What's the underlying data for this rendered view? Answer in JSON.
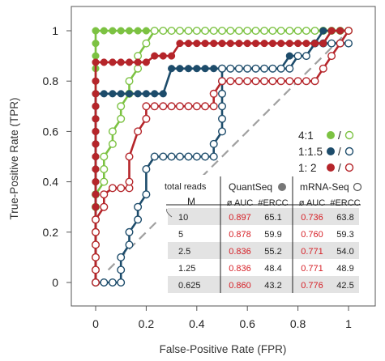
{
  "chart_data": {
    "type": "line",
    "xlabel": "False-Positive Rate (FPR)",
    "ylabel": "True-Positive Rate (TPR)",
    "xlim": [
      0,
      1
    ],
    "ylim": [
      0,
      1
    ],
    "x_ticks": [
      "0",
      "0.2",
      "0.4",
      "0.6",
      "0.8",
      "1"
    ],
    "y_ticks": [
      "0",
      "0.2",
      "0.4",
      "0.6",
      "0.8",
      "1"
    ],
    "diagonal": "dashed",
    "colors": {
      "ratio_4_1": "#7cc242",
      "ratio_1_1_5": "#1d4c6b",
      "ratio_1_2": "#b5252a",
      "diagonal": "#a0a0a0"
    },
    "legend": [
      {
        "label": "4:1",
        "color": "#7cc242"
      },
      {
        "label": "1:1.5",
        "color": "#1d4c6b"
      },
      {
        "label": "1: 2",
        "color": "#b5252a"
      }
    ],
    "legend_separator": "/",
    "marker_meaning": {
      "filled": "QuantSeq",
      "open": "mRNA-Seq"
    },
    "series": [
      {
        "color": "#7cc242",
        "marker": "filled",
        "x": [
          0,
          0,
          0,
          0,
          0,
          0,
          0,
          0,
          0,
          0,
          0,
          0,
          0,
          0,
          0,
          0,
          0,
          0,
          0,
          0,
          0,
          0.033,
          0.067,
          0.1,
          0.133,
          0.167,
          0.2,
          0.233,
          0.267,
          0.3,
          0.333,
          0.367,
          0.4,
          0.433,
          0.467,
          0.5,
          0.533,
          0.567,
          0.6,
          0.633,
          0.667,
          0.7,
          0.733,
          0.767,
          0.8,
          0.833,
          0.867,
          0.9,
          0.933,
          0.967,
          1
        ],
        "y": [
          0,
          0.05,
          0.1,
          0.15,
          0.2,
          0.25,
          0.3,
          0.35,
          0.4,
          0.45,
          0.5,
          0.55,
          0.6,
          0.65,
          0.7,
          0.75,
          0.8,
          0.85,
          0.9,
          0.95,
          1,
          1,
          1,
          1,
          1,
          1,
          1,
          1,
          1,
          1,
          1,
          1,
          1,
          1,
          1,
          1,
          1,
          1,
          1,
          1,
          1,
          1,
          1,
          1,
          1,
          1,
          1,
          1,
          1,
          1,
          1
        ]
      },
      {
        "color": "#7cc242",
        "marker": "open",
        "x": [
          0,
          0,
          0,
          0,
          0,
          0,
          0,
          0,
          0.033,
          0.033,
          0.033,
          0.067,
          0.067,
          0.1,
          0.1,
          0.133,
          0.133,
          0.167,
          0.167,
          0.2,
          0.233,
          0.267,
          0.3,
          0.333,
          0.367,
          0.4,
          0.433,
          0.467,
          0.5,
          0.533,
          0.567,
          0.6,
          0.633,
          0.667,
          0.7,
          0.733,
          0.767,
          0.8,
          0.833,
          0.867,
          0.9,
          0.933,
          0.967,
          1
        ],
        "y": [
          0,
          0.05,
          0.1,
          0.15,
          0.2,
          0.25,
          0.3,
          0.35,
          0.4,
          0.45,
          0.5,
          0.55,
          0.6,
          0.65,
          0.7,
          0.75,
          0.8,
          0.85,
          0.9,
          0.95,
          1,
          1,
          1,
          1,
          1,
          1,
          1,
          1,
          1,
          1,
          1,
          1,
          1,
          1,
          1,
          1,
          1,
          1,
          1,
          1,
          1,
          1,
          1,
          1
        ]
      },
      {
        "color": "#1d4c6b",
        "marker": "filled",
        "x": [
          0,
          0,
          0,
          0,
          0,
          0,
          0,
          0,
          0,
          0,
          0,
          0,
          0,
          0,
          0,
          0,
          0.033,
          0.067,
          0.1,
          0.133,
          0.167,
          0.2,
          0.233,
          0.267,
          0.3,
          0.333,
          0.367,
          0.4,
          0.433,
          0.467,
          0.5,
          0.533,
          0.567,
          0.6,
          0.633,
          0.667,
          0.7,
          0.733,
          0.767,
          0.8,
          0.833,
          0.867,
          0.9,
          0.933,
          0.967,
          1
        ],
        "y": [
          0,
          0.05,
          0.1,
          0.15,
          0.2,
          0.25,
          0.3,
          0.35,
          0.4,
          0.45,
          0.5,
          0.55,
          0.6,
          0.65,
          0.7,
          0.75,
          0.75,
          0.75,
          0.75,
          0.75,
          0.75,
          0.75,
          0.75,
          0.75,
          0.85,
          0.85,
          0.85,
          0.85,
          0.85,
          0.85,
          0.85,
          0.85,
          0.85,
          0.85,
          0.85,
          0.85,
          0.85,
          0.85,
          0.9,
          0.9,
          0.9,
          0.95,
          1,
          1,
          1,
          1
        ]
      },
      {
        "color": "#1d4c6b",
        "marker": "open",
        "x": [
          0,
          0.033,
          0.067,
          0.1,
          0.1,
          0.1,
          0.133,
          0.133,
          0.167,
          0.167,
          0.2,
          0.2,
          0.233,
          0.267,
          0.3,
          0.333,
          0.367,
          0.4,
          0.433,
          0.467,
          0.467,
          0.5,
          0.5,
          0.5,
          0.5,
          0.5,
          0.5,
          0.5,
          0.533,
          0.567,
          0.6,
          0.633,
          0.667,
          0.7,
          0.733,
          0.767,
          0.8,
          0.833,
          0.867,
          0.9,
          0.933,
          0.967,
          1
        ],
        "y": [
          0,
          0,
          0,
          0,
          0.05,
          0.1,
          0.15,
          0.2,
          0.25,
          0.3,
          0.35,
          0.45,
          0.5,
          0.5,
          0.5,
          0.5,
          0.5,
          0.5,
          0.5,
          0.5,
          0.55,
          0.6,
          0.65,
          0.7,
          0.75,
          0.8,
          0.85,
          0.85,
          0.85,
          0.85,
          0.85,
          0.85,
          0.85,
          0.85,
          0.85,
          0.85,
          0.9,
          0.9,
          0.95,
          0.95,
          0.95,
          0.95,
          0.95
        ]
      },
      {
        "color": "#b5252a",
        "marker": "filled",
        "x": [
          0,
          0,
          0,
          0,
          0,
          0,
          0,
          0,
          0,
          0,
          0,
          0,
          0,
          0,
          0,
          0,
          0,
          0,
          0.033,
          0.067,
          0.1,
          0.133,
          0.167,
          0.2,
          0.233,
          0.267,
          0.3,
          0.333,
          0.367,
          0.4,
          0.433,
          0.467,
          0.5,
          0.533,
          0.567,
          0.6,
          0.633,
          0.667,
          0.7,
          0.733,
          0.767,
          0.8,
          0.833,
          0.867,
          0.9,
          0.933,
          0.967,
          1
        ],
        "y": [
          0,
          0.05,
          0.1,
          0.15,
          0.2,
          0.25,
          0.3,
          0.35,
          0.4,
          0.45,
          0.5,
          0.55,
          0.6,
          0.65,
          0.7,
          0.75,
          0.8,
          0.875,
          0.875,
          0.875,
          0.875,
          0.875,
          0.875,
          0.875,
          0.9,
          0.9,
          0.9,
          0.95,
          0.95,
          0.95,
          0.95,
          0.95,
          0.95,
          0.95,
          0.95,
          0.95,
          0.95,
          0.95,
          0.95,
          0.95,
          0.95,
          0.95,
          0.95,
          0.95,
          0.95,
          1,
          1,
          1
        ]
      },
      {
        "color": "#b5252a",
        "marker": "open",
        "x": [
          0,
          0,
          0,
          0,
          0,
          0,
          0.033,
          0.033,
          0.067,
          0.1,
          0.133,
          0.133,
          0.133,
          0.167,
          0.2,
          0.2,
          0.233,
          0.267,
          0.3,
          0.333,
          0.367,
          0.4,
          0.433,
          0.467,
          0.467,
          0.5,
          0.533,
          0.567,
          0.6,
          0.633,
          0.667,
          0.7,
          0.733,
          0.767,
          0.8,
          0.833,
          0.867,
          0.9,
          0.933,
          0.967,
          1
        ],
        "y": [
          0,
          0.05,
          0.1,
          0.15,
          0.2,
          0.25,
          0.3,
          0.35,
          0.375,
          0.375,
          0.375,
          0.4,
          0.5,
          0.6,
          0.65,
          0.7,
          0.7,
          0.7,
          0.7,
          0.7,
          0.7,
          0.7,
          0.7,
          0.7,
          0.75,
          0.8,
          0.8,
          0.8,
          0.8,
          0.8,
          0.8,
          0.8,
          0.8,
          0.8,
          0.8,
          0.8,
          0.8,
          0.85,
          0.9,
          0.95,
          1
        ]
      }
    ],
    "table": {
      "corner": "total reads",
      "m_label": "M",
      "groups": [
        "QuantSeq",
        "mRNA-Seq"
      ],
      "subheaders": [
        "ø AUC",
        "#ERCC",
        "ø AUC",
        "#ERCC"
      ],
      "rows": [
        {
          "m": "10",
          "q_auc": "0.897",
          "q_ercc": "65.1",
          "m_auc": "0.736",
          "m_ercc": "63.8",
          "shaded": true
        },
        {
          "m": "5",
          "q_auc": "0.878",
          "q_ercc": "59.9",
          "m_auc": "0.760",
          "m_ercc": "59.3",
          "shaded": false
        },
        {
          "m": "2.5",
          "q_auc": "0.836",
          "q_ercc": "55.2",
          "m_auc": "0.771",
          "m_ercc": "54.0",
          "shaded": true
        },
        {
          "m": "1.25",
          "q_auc": "0.836",
          "q_ercc": "48.4",
          "m_auc": "0.771",
          "m_ercc": "48.9",
          "shaded": false
        },
        {
          "m": "0.625",
          "q_auc": "0.860",
          "q_ercc": "43.2",
          "m_auc": "0.776",
          "m_ercc": "42.5",
          "shaded": true
        }
      ]
    }
  }
}
